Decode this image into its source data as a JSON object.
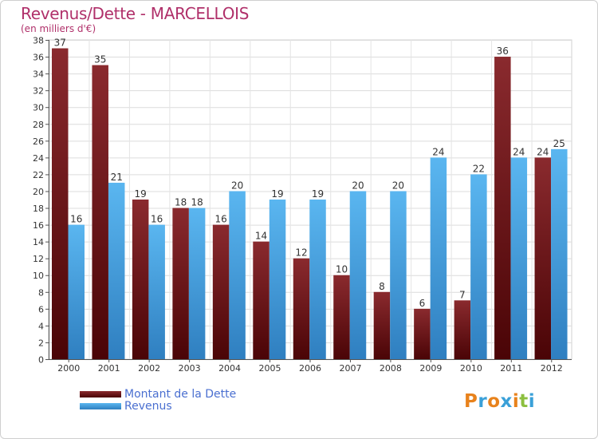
{
  "header": {
    "title": "Revenus/Dette - MARCELLOIS",
    "subtitle": "(en milliers d'€)"
  },
  "legend": {
    "items": [
      {
        "label": "Montant de la Dette",
        "color": "#7a1a1e"
      },
      {
        "label": "Revenus",
        "color": "#4fa8e6"
      }
    ]
  },
  "logo": {
    "text": "Proxiti",
    "letter_colors": [
      "#e8821c",
      "#3aa0d8",
      "#e8821c",
      "#3aa0d8",
      "#e8821c",
      "#8cbf3f",
      "#3aa0d8"
    ]
  },
  "chart_data": {
    "type": "bar",
    "categories": [
      "2000",
      "2001",
      "2002",
      "2003",
      "2004",
      "2005",
      "2006",
      "2007",
      "2008",
      "2009",
      "2010",
      "2011",
      "2012"
    ],
    "series": [
      {
        "name": "Montant de la Dette",
        "color": "#7a1a1e",
        "values": [
          37,
          35,
          19,
          18,
          16,
          14,
          12,
          10,
          8,
          6,
          7,
          36,
          24
        ]
      },
      {
        "name": "Revenus",
        "color": "#4fa8e6",
        "values": [
          16,
          21,
          16,
          18,
          20,
          19,
          19,
          20,
          20,
          24,
          22,
          24,
          25
        ]
      }
    ],
    "title": "Revenus/Dette - MARCELLOIS",
    "subtitle": "(en milliers d'€)",
    "xlabel": "",
    "ylabel": "",
    "ylim": [
      0,
      38
    ],
    "yticks": [
      0,
      2,
      4,
      6,
      8,
      10,
      12,
      14,
      16,
      18,
      20,
      22,
      24,
      26,
      28,
      30,
      32,
      34,
      36,
      38
    ],
    "grid": true,
    "legend_position": "bottom-left",
    "data_labels": true
  }
}
